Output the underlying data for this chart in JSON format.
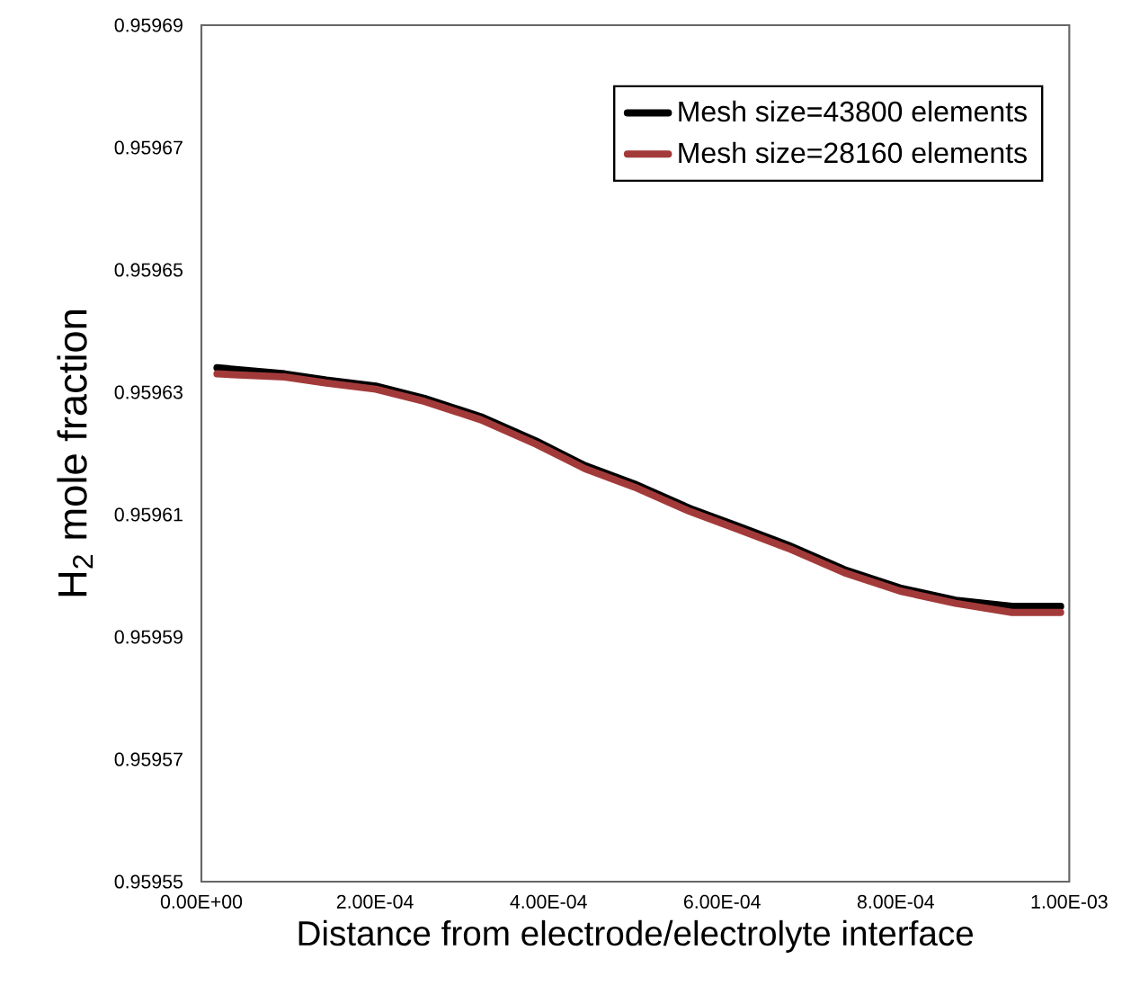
{
  "chart_data": {
    "type": "line",
    "xlabel": "Distance from electrode/electrolyte interface",
    "ylabel": "H$_{2}$ mole fraction",
    "xlim": [
      0,
      0.001
    ],
    "ylim": [
      0.95955,
      0.95969
    ],
    "xticks": [
      {
        "value": 0,
        "label": "0.00E+00"
      },
      {
        "value": 0.0002,
        "label": "2.00E-04"
      },
      {
        "value": 0.0004,
        "label": "4.00E-04"
      },
      {
        "value": 0.0006,
        "label": "6.00E-04"
      },
      {
        "value": 0.0008,
        "label": "8.00E-04"
      },
      {
        "value": 0.001,
        "label": "1.00E-03"
      }
    ],
    "yticks": [
      0.95955,
      0.95957,
      0.95959,
      0.95961,
      0.95963,
      0.95965,
      0.95967,
      0.95969
    ],
    "x": [
      1.8e-05,
      9.6e-05,
      0.000144,
      0.000201,
      0.000257,
      0.000322,
      0.000386,
      0.000442,
      0.000499,
      0.000563,
      0.00062,
      0.000676,
      0.000741,
      0.000805,
      0.000869,
      0.000934,
      0.00099
    ],
    "series": [
      {
        "name": "Mesh size=43800 elements",
        "color": "#000000",
        "values": [
          0.959634,
          0.959633,
          0.959632,
          0.959631,
          0.959629,
          0.959626,
          0.959622,
          0.959618,
          0.959615,
          0.959611,
          0.959608,
          0.959605,
          0.959601,
          0.959598,
          0.959596,
          0.959595,
          0.959595
        ]
      },
      {
        "name": "Mesh size=28160 elements",
        "color": "#a33a3a",
        "values": [
          0.959633,
          0.9596325,
          0.9596315,
          0.9596305,
          0.9596285,
          0.9596255,
          0.9596215,
          0.9596175,
          0.9596145,
          0.9596105,
          0.9596075,
          0.9596045,
          0.9596005,
          0.9595975,
          0.9595955,
          0.959594,
          0.959594
        ]
      }
    ],
    "legend": "top right",
    "grid": false,
    "marker": "none",
    "line_style": "solid"
  }
}
